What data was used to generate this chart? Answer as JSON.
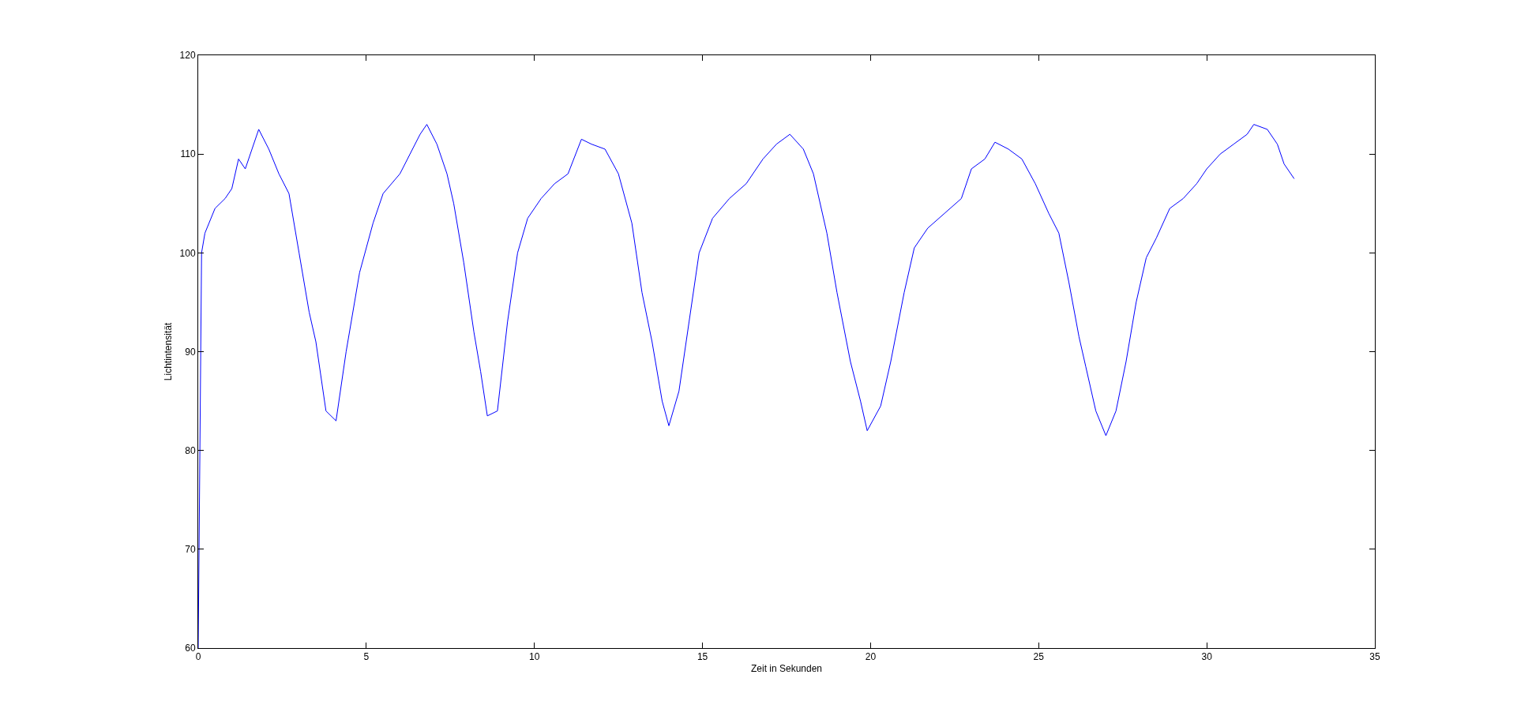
{
  "chart_data": {
    "type": "line",
    "xlabel": "Zeit in Sekunden",
    "ylabel": "Lichtintensität",
    "xlim": [
      0,
      35
    ],
    "ylim": [
      60,
      120
    ],
    "xticks": [
      0,
      5,
      10,
      15,
      20,
      25,
      30,
      35
    ],
    "yticks": [
      60,
      70,
      80,
      90,
      100,
      110,
      120
    ],
    "grid": false,
    "marker": "none",
    "line_style": "solid",
    "series": [
      {
        "color": "#0000ff",
        "x": [
          0,
          0.1,
          0.2,
          0.5,
          0.8,
          1.0,
          1.2,
          1.4,
          1.6,
          1.8,
          2.1,
          2.4,
          2.7,
          3.0,
          3.3,
          3.5,
          3.8,
          4.1,
          4.4,
          4.8,
          5.2,
          5.5,
          6.0,
          6.3,
          6.6,
          6.8,
          7.1,
          7.4,
          7.6,
          7.9,
          8.2,
          8.4,
          8.6,
          8.9,
          9.2,
          9.5,
          9.8,
          10.2,
          10.6,
          11.0,
          11.4,
          11.7,
          12.1,
          12.5,
          12.9,
          13.2,
          13.5,
          13.8,
          14.0,
          14.3,
          14.6,
          14.9,
          15.3,
          15.8,
          16.3,
          16.8,
          17.2,
          17.6,
          18.0,
          18.3,
          18.7,
          19.0,
          19.4,
          19.7,
          19.9,
          20.3,
          20.6,
          21.0,
          21.3,
          21.7,
          22.2,
          22.7,
          23.0,
          23.4,
          23.7,
          24.1,
          24.5,
          24.9,
          25.3,
          25.6,
          25.9,
          26.2,
          26.4,
          26.7,
          27.0,
          27.3,
          27.6,
          27.9,
          28.2,
          28.5,
          28.9,
          29.3,
          29.7,
          30.0,
          30.4,
          30.8,
          31.2,
          31.4,
          31.8,
          32.1,
          32.3,
          32.6
        ],
        "values": [
          60,
          100,
          102,
          104.5,
          105.5,
          106.5,
          109.5,
          108.5,
          110.5,
          112.5,
          110.5,
          108,
          106,
          100,
          94,
          91,
          84,
          83,
          90,
          98,
          103,
          106,
          108,
          110,
          112,
          113,
          111,
          108,
          105,
          99,
          92,
          88,
          83.5,
          84,
          93,
          100,
          103.5,
          105.5,
          107,
          108,
          111.5,
          111,
          110.5,
          108,
          103,
          96,
          91,
          85,
          82.5,
          86,
          93,
          100,
          103.5,
          105.5,
          107,
          109.5,
          111,
          112,
          110.5,
          108,
          102,
          96,
          89,
          85,
          82,
          84.5,
          89,
          96,
          100.5,
          102.5,
          104,
          105.5,
          108.5,
          109.5,
          111.2,
          110.5,
          109.5,
          107,
          104,
          102,
          97,
          91.5,
          88.5,
          84,
          81.5,
          84,
          89,
          95,
          99.5,
          101.5,
          104.5,
          105.5,
          107,
          108.5,
          110,
          111,
          112,
          113,
          112.5,
          111,
          109,
          107.5
        ]
      }
    ]
  }
}
